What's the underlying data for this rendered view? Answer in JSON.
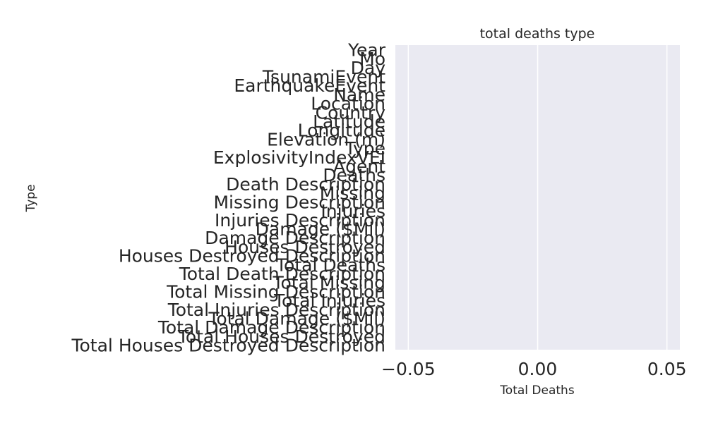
{
  "chart_data": {
    "type": "bar",
    "orientation": "horizontal",
    "title": "total deaths type",
    "xlabel": "Total Deaths",
    "ylabel": "Type",
    "xlim": [
      -0.055,
      0.055
    ],
    "xticks": [
      -0.05,
      0.0,
      0.05
    ],
    "xtick_labels": [
      "−0.05",
      "0.00",
      "0.05"
    ],
    "grid": true,
    "legend": "none",
    "categories": [
      "Year",
      "Mo",
      "Day",
      "TsunamiEvent",
      "EarthquakeEvent",
      "Name",
      "Location",
      "Country",
      "Latitude",
      "Longitude",
      "Elevation (m)",
      "Type",
      "ExplosivityIndexVEI",
      "Agent",
      "Deaths",
      "Death Description",
      "Missing",
      "Missing Description",
      "Injuries",
      "Injuries Description",
      "Damage ($Mil)",
      "Damage Description",
      "Houses Destroyed",
      "Houses Destroyed Description",
      "Total Deaths",
      "Total Death Description",
      "Total Missing",
      "Total Missing Description",
      "Total Injuries",
      "Total Injuries Description",
      "Total Damage ($Mil)",
      "Total Damage Description",
      "Total Houses Destroyed",
      "Total Houses Destroyed Description"
    ],
    "values": [
      0,
      0,
      0,
      0,
      0,
      0,
      0,
      0,
      0,
      0,
      0,
      0,
      0,
      0,
      0,
      0,
      0,
      0,
      0,
      0,
      0,
      0,
      0,
      0,
      0,
      0,
      0,
      0,
      0,
      0,
      0,
      0,
      0,
      0
    ]
  },
  "colors": {
    "plot_background": "#eaeaf2",
    "grid": "#ffffff",
    "text": "#262626",
    "bar": "#4c72b0"
  }
}
